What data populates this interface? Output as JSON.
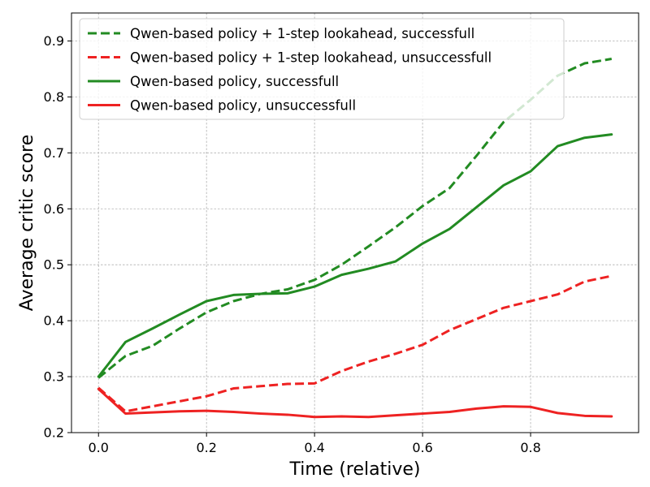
{
  "chart_data": {
    "type": "line",
    "xlabel": "Time (relative)",
    "ylabel": "Average critic score",
    "xlim": [
      -0.05,
      1.0
    ],
    "ylim": [
      0.2,
      0.95
    ],
    "xticks": [
      0.0,
      0.2,
      0.4,
      0.6,
      0.8
    ],
    "xtick_labels": [
      "0.0",
      "0.2",
      "0.4",
      "0.6",
      "0.8"
    ],
    "yticks": [
      0.2,
      0.3,
      0.4,
      0.5,
      0.6,
      0.7,
      0.8,
      0.9
    ],
    "ytick_labels": [
      "0.2",
      "0.3",
      "0.4",
      "0.5",
      "0.6",
      "0.7",
      "0.8",
      "0.9"
    ],
    "grid": true,
    "legend_position": "top-left",
    "series": [
      {
        "name": "Qwen-based policy + 1-step lookahead, successfull",
        "color": "#228B22",
        "style": "dashed",
        "x": [
          0.0,
          0.05,
          0.1,
          0.15,
          0.2,
          0.25,
          0.3,
          0.35,
          0.4,
          0.45,
          0.5,
          0.55,
          0.6,
          0.65,
          0.7,
          0.75,
          0.8,
          0.85,
          0.9,
          0.95
        ],
        "y": [
          0.298,
          0.337,
          0.355,
          0.386,
          0.415,
          0.435,
          0.448,
          0.456,
          0.473,
          0.5,
          0.533,
          0.567,
          0.605,
          0.637,
          0.695,
          0.755,
          0.795,
          0.838,
          0.86,
          0.868
        ]
      },
      {
        "name": "Qwen-based policy + 1-step lookahead, unsuccessfull",
        "color": "#EE2222",
        "style": "dashed",
        "x": [
          0.0,
          0.05,
          0.1,
          0.15,
          0.2,
          0.25,
          0.3,
          0.35,
          0.4,
          0.45,
          0.5,
          0.55,
          0.6,
          0.65,
          0.7,
          0.75,
          0.8,
          0.85,
          0.9,
          0.95
        ],
        "y": [
          0.28,
          0.238,
          0.247,
          0.256,
          0.265,
          0.279,
          0.283,
          0.287,
          0.288,
          0.31,
          0.327,
          0.341,
          0.357,
          0.383,
          0.403,
          0.423,
          0.435,
          0.447,
          0.47,
          0.48
        ]
      },
      {
        "name": "Qwen-based policy, successfull",
        "color": "#228B22",
        "style": "solid",
        "x": [
          0.0,
          0.05,
          0.1,
          0.15,
          0.2,
          0.25,
          0.3,
          0.35,
          0.4,
          0.45,
          0.5,
          0.55,
          0.6,
          0.65,
          0.7,
          0.75,
          0.8,
          0.85,
          0.9,
          0.95
        ],
        "y": [
          0.3,
          0.362,
          0.386,
          0.411,
          0.435,
          0.446,
          0.448,
          0.449,
          0.461,
          0.482,
          0.493,
          0.506,
          0.538,
          0.564,
          0.603,
          0.642,
          0.667,
          0.712,
          0.727,
          0.733
        ]
      },
      {
        "name": "Qwen-based policy, unsuccessfull",
        "color": "#EE2222",
        "style": "solid",
        "x": [
          0.0,
          0.05,
          0.1,
          0.15,
          0.2,
          0.25,
          0.3,
          0.35,
          0.4,
          0.45,
          0.5,
          0.55,
          0.6,
          0.65,
          0.7,
          0.75,
          0.8,
          0.85,
          0.9,
          0.95
        ],
        "y": [
          0.278,
          0.234,
          0.236,
          0.238,
          0.239,
          0.237,
          0.234,
          0.232,
          0.228,
          0.229,
          0.228,
          0.231,
          0.234,
          0.237,
          0.243,
          0.247,
          0.246,
          0.235,
          0.23,
          0.229
        ]
      }
    ]
  }
}
